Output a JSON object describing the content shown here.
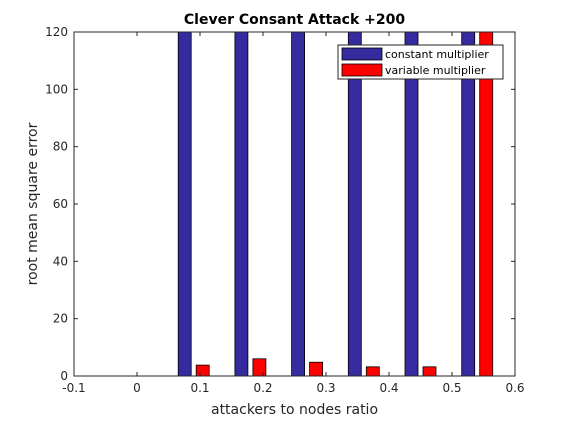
{
  "chart_data": {
    "type": "bar",
    "title": "Clever Consant Attack +200",
    "xlabel": "attackers to nodes ratio",
    "ylabel": "root mean square error",
    "xlim": [
      -0.1,
      0.6
    ],
    "ylim": [
      0,
      120
    ],
    "xticks": [
      "-0.1",
      "0",
      "0.1",
      "0.2",
      "0.3",
      "0.4",
      "0.5",
      "0.6"
    ],
    "yticks": [
      "0",
      "20",
      "40",
      "60",
      "80",
      "100",
      "120"
    ],
    "x": [
      0.09,
      0.18,
      0.27,
      0.36,
      0.45,
      0.54
    ],
    "series": [
      {
        "name": "constant multiplier",
        "color": "#352a9e",
        "values": [
          120,
          120,
          120,
          120,
          120,
          120
        ]
      },
      {
        "name": "variable multiplier",
        "color": "#ff0000",
        "values": [
          3.8,
          6.0,
          4.8,
          3.2,
          3.2,
          120
        ]
      }
    ],
    "legend_position": "top-right",
    "grid": false
  }
}
